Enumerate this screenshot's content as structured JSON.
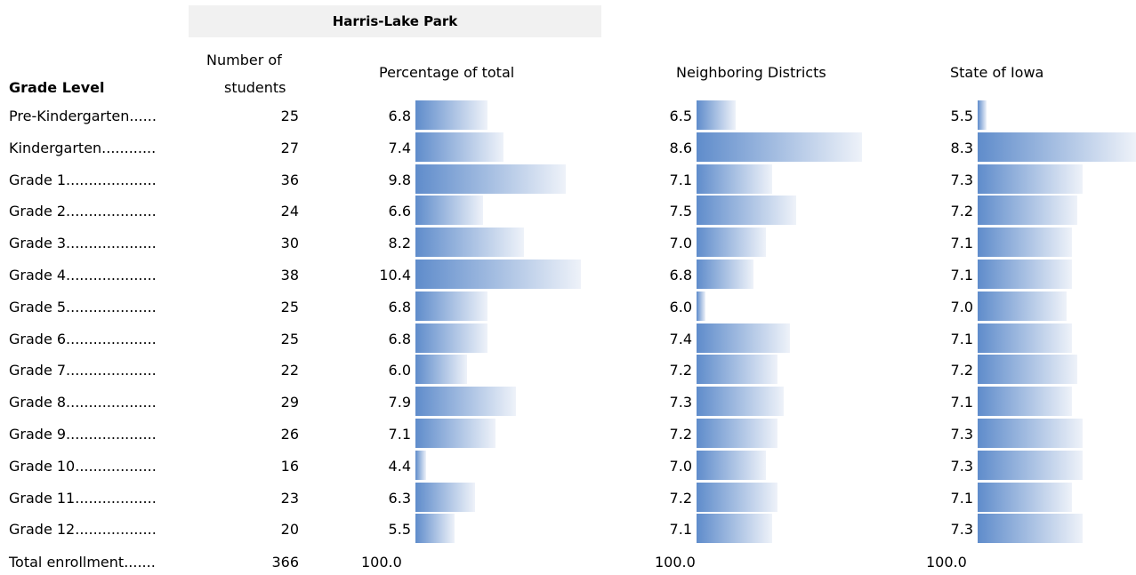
{
  "header": {
    "district": "Harris-Lake Park",
    "grade_level": "Grade Level",
    "students_line1": "Number of",
    "students_line2": "students",
    "pct_total": "Percentage of total",
    "neighboring": "Neighboring Districts",
    "state": "State of Iowa"
  },
  "chart_data": {
    "type": "bar",
    "orientation": "horizontal",
    "categories": [
      "Pre-Kindergarten......",
      "Kindergarten............",
      "Grade 1....................",
      "Grade 2....................",
      "Grade 3....................",
      "Grade 4....................",
      "Grade 5....................",
      "Grade 6....................",
      "Grade 7....................",
      "Grade 8....................",
      "Grade 9....................",
      "Grade 10..................",
      "Grade 11..................",
      "Grade 12.................."
    ],
    "students": [
      "25",
      "27",
      "36",
      "24",
      "30",
      "38",
      "25",
      "25",
      "22",
      "29",
      "26",
      "16",
      "23",
      "20"
    ],
    "series": [
      {
        "name": "Percentage of total",
        "values": [
          6.8,
          7.4,
          9.8,
          6.6,
          8.2,
          10.4,
          6.8,
          6.8,
          6.0,
          7.9,
          7.1,
          4.4,
          6.3,
          5.5
        ],
        "labels": [
          "6.8",
          "7.4",
          "9.8",
          "6.6",
          "8.2",
          "10.4",
          "6.8",
          "6.8",
          "6.0",
          "7.9",
          "7.1",
          "4.4",
          "6.3",
          "5.5"
        ],
        "axis_min": 4.0,
        "axis_max": 10.4
      },
      {
        "name": "Neighboring Districts",
        "values": [
          6.5,
          8.6,
          7.1,
          7.5,
          7.0,
          6.8,
          6.0,
          7.4,
          7.2,
          7.3,
          7.2,
          7.0,
          7.2,
          7.1
        ],
        "labels": [
          "6.5",
          "8.6",
          "7.1",
          "7.5",
          "7.0",
          "6.8",
          "6.0",
          "7.4",
          "7.2",
          "7.3",
          "7.2",
          "7.0",
          "7.2",
          "7.1"
        ],
        "axis_min": 5.85,
        "axis_max": 8.6
      },
      {
        "name": "State of Iowa",
        "values": [
          5.5,
          8.3,
          7.3,
          7.2,
          7.1,
          7.1,
          7.0,
          7.1,
          7.2,
          7.1,
          7.3,
          7.3,
          7.1,
          7.3
        ],
        "labels": [
          "5.5",
          "8.3",
          "7.3",
          "7.2",
          "7.1",
          "7.1",
          "7.0",
          "7.1",
          "7.2",
          "7.1",
          "7.3",
          "7.3",
          "7.1",
          "7.3"
        ],
        "axis_min": 5.34,
        "axis_max": 8.3
      }
    ],
    "colors": {
      "bar_start": "#5f8ccb",
      "bar_end": "#eef2f9"
    }
  },
  "total": {
    "label": "Total enrollment.......",
    "students": "366",
    "pct_total": "100.0",
    "neighboring": "100.0",
    "state": "100.0"
  }
}
